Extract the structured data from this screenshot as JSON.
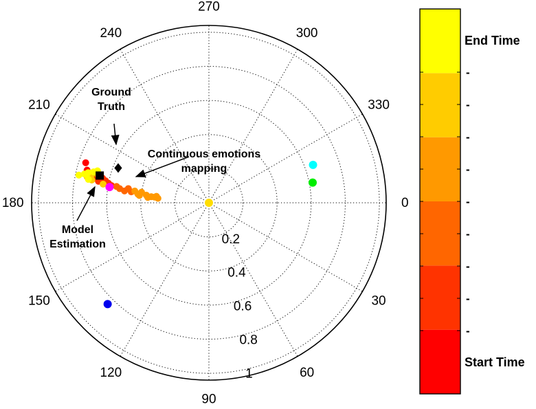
{
  "chart_data": {
    "type": "scatter",
    "coordinate_system": "polar",
    "angle_direction": "clockwise",
    "angle_ticks": [
      0,
      30,
      60,
      90,
      120,
      150,
      180,
      210,
      240,
      270,
      300,
      330
    ],
    "angle_tick_labels": [
      "0",
      "30",
      "60",
      "90",
      "120",
      "150",
      "180",
      "210",
      "240",
      "270",
      "300",
      "330"
    ],
    "radial_ticks": [
      0.2,
      0.4,
      0.6,
      0.8,
      1
    ],
    "radial_tick_labels": [
      "0.2",
      "0.4",
      "0.6",
      "0.8",
      "1"
    ],
    "rlim": [
      0,
      1.04
    ],
    "grid": true,
    "annotations": [
      {
        "lines": [
          "Ground",
          "Truth"
        ]
      },
      {
        "lines": [
          "Continuous emotions",
          "mapping"
        ]
      },
      {
        "lines": [
          "Model",
          "Estimation"
        ]
      }
    ],
    "colorbar": {
      "colors": [
        "#ff0000",
        "#ff3300",
        "#ff6600",
        "#ff9900",
        "#ffcc00",
        "#ffff00"
      ],
      "top_label": "End Time",
      "bottom_label": "Start Time",
      "tick_marks": [
        "-",
        "-",
        "-",
        "-",
        "-",
        "-",
        "-",
        "-",
        "-"
      ]
    },
    "reference_points": [
      {
        "theta": 0,
        "r": 0.0,
        "color": "#ffdd00"
      },
      {
        "theta": 340,
        "r": 0.65,
        "color": "#00ffff"
      },
      {
        "theta": 349,
        "r": 0.62,
        "color": "#00ee00"
      },
      {
        "theta": 135,
        "r": 0.84,
        "color": "#0000ee"
      },
      {
        "theta": 189,
        "r": 0.59,
        "color": "#ff00ff"
      }
    ],
    "ground_truth": {
      "theta": 201,
      "r": 0.57,
      "color": "#000000"
    },
    "model_estimation": {
      "theta": 194,
      "r": 0.66,
      "color": "#000000"
    },
    "trajectory": [
      {
        "theta": 198,
        "r": 0.76,
        "t": 0.02
      },
      {
        "theta": 195,
        "r": 0.74,
        "t": 0.08
      },
      {
        "theta": 193,
        "r": 0.72,
        "t": 0.12
      },
      {
        "theta": 194,
        "r": 0.7,
        "t": 0.15
      },
      {
        "theta": 192,
        "r": 0.69,
        "t": 0.18
      },
      {
        "theta": 191,
        "r": 0.66,
        "t": 0.22
      },
      {
        "theta": 193,
        "r": 0.64,
        "t": 0.25
      },
      {
        "theta": 192,
        "r": 0.62,
        "t": 0.28
      },
      {
        "theta": 191,
        "r": 0.6,
        "t": 0.3
      },
      {
        "theta": 190,
        "r": 0.58,
        "t": 0.33
      },
      {
        "theta": 190,
        "r": 0.55,
        "t": 0.37
      },
      {
        "theta": 189,
        "r": 0.53,
        "t": 0.4
      },
      {
        "theta": 188,
        "r": 0.5,
        "t": 0.42
      },
      {
        "theta": 190,
        "r": 0.48,
        "t": 0.45
      },
      {
        "theta": 188,
        "r": 0.46,
        "t": 0.47
      },
      {
        "theta": 189,
        "r": 0.44,
        "t": 0.5
      },
      {
        "theta": 187,
        "r": 0.42,
        "t": 0.52
      },
      {
        "theta": 189,
        "r": 0.4,
        "t": 0.55
      },
      {
        "theta": 187,
        "r": 0.37,
        "t": 0.57
      },
      {
        "theta": 186,
        "r": 0.34,
        "t": 0.58
      },
      {
        "theta": 187,
        "r": 0.31,
        "t": 0.6
      },
      {
        "theta": 185,
        "r": 0.3,
        "t": 0.62
      },
      {
        "theta": 186,
        "r": 0.32,
        "t": 0.63
      },
      {
        "theta": 185,
        "r": 0.36,
        "t": 0.64
      },
      {
        "theta": 186,
        "r": 0.41,
        "t": 0.65
      },
      {
        "theta": 190,
        "r": 0.63,
        "t": 0.67
      },
      {
        "theta": 191,
        "r": 0.7,
        "t": 0.7
      },
      {
        "theta": 192,
        "r": 0.73,
        "t": 0.73
      },
      {
        "theta": 194,
        "r": 0.72,
        "t": 0.76
      },
      {
        "theta": 193,
        "r": 0.71,
        "t": 0.78
      },
      {
        "theta": 195,
        "r": 0.69,
        "t": 0.8
      },
      {
        "theta": 194,
        "r": 0.67,
        "t": 0.82
      },
      {
        "theta": 196,
        "r": 0.68,
        "t": 0.85
      },
      {
        "theta": 195,
        "r": 0.7,
        "t": 0.88
      },
      {
        "theta": 194,
        "r": 0.73,
        "t": 0.91
      },
      {
        "theta": 193,
        "r": 0.75,
        "t": 0.94
      },
      {
        "theta": 192,
        "r": 0.78,
        "t": 0.96
      },
      {
        "theta": 193,
        "r": 0.74,
        "t": 0.98
      },
      {
        "theta": 191,
        "r": 0.72,
        "t": 1.0
      }
    ]
  }
}
